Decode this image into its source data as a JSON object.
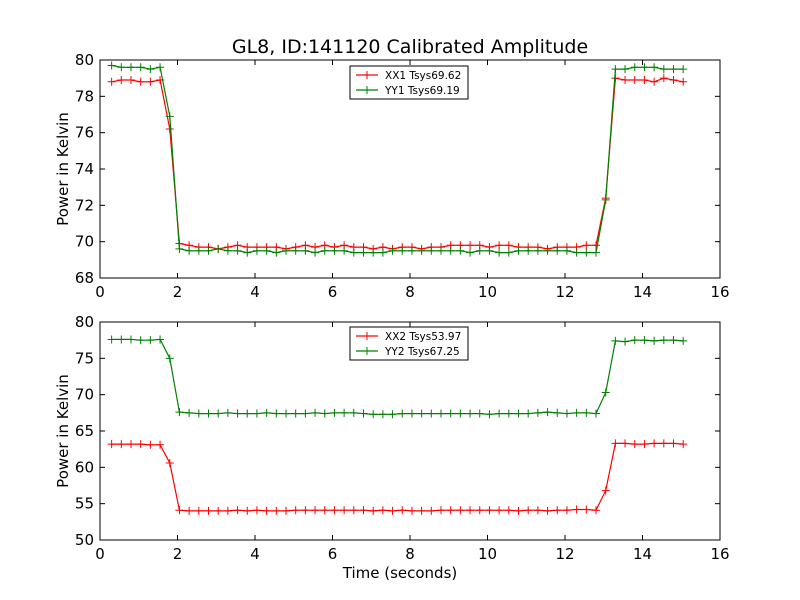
{
  "title": "GL8, ID:141120 Calibrated Amplitude",
  "chart_data": [
    {
      "type": "line",
      "ylabel": "Power in Kelvin",
      "xlabel": "",
      "xlim": [
        0,
        16
      ],
      "ylim": [
        68,
        80
      ],
      "xticks": [
        "0",
        "2",
        "4",
        "6",
        "8",
        "10",
        "12",
        "14",
        "16"
      ],
      "yticks": [
        "68",
        "70",
        "72",
        "74",
        "76",
        "78",
        "80"
      ],
      "legend_position": "upper-center",
      "series": [
        {
          "name": "XX1 Tsys69.62",
          "color": "#ff0000",
          "x": [
            0.3,
            0.55,
            0.8,
            1.05,
            1.3,
            1.55,
            1.8,
            2.05,
            2.3,
            2.55,
            2.8,
            3.05,
            3.3,
            3.55,
            3.8,
            4.05,
            4.3,
            4.55,
            4.8,
            5.05,
            5.3,
            5.55,
            5.8,
            6.05,
            6.3,
            6.55,
            6.8,
            7.05,
            7.3,
            7.55,
            7.8,
            8.05,
            8.3,
            8.55,
            8.8,
            9.05,
            9.3,
            9.55,
            9.8,
            10.05,
            10.3,
            10.55,
            10.8,
            11.05,
            11.3,
            11.55,
            11.8,
            12.05,
            12.3,
            12.55,
            12.8,
            13.05,
            13.3,
            13.55,
            13.8,
            14.05,
            14.3,
            14.55,
            14.8,
            15.05
          ],
          "y": [
            78.8,
            78.9,
            78.9,
            78.8,
            78.8,
            78.9,
            76.2,
            69.9,
            69.8,
            69.7,
            69.7,
            69.6,
            69.7,
            69.8,
            69.7,
            69.7,
            69.7,
            69.7,
            69.6,
            69.7,
            69.8,
            69.7,
            69.8,
            69.7,
            69.8,
            69.7,
            69.7,
            69.6,
            69.7,
            69.6,
            69.7,
            69.7,
            69.6,
            69.7,
            69.7,
            69.8,
            69.8,
            69.8,
            69.8,
            69.7,
            69.8,
            69.8,
            69.7,
            69.7,
            69.7,
            69.6,
            69.7,
            69.7,
            69.7,
            69.8,
            69.8,
            72.4,
            79.0,
            78.9,
            78.9,
            78.9,
            78.8,
            79.0,
            78.9,
            78.8
          ]
        },
        {
          "name": "YY1 Tsys69.19",
          "color": "#008000",
          "x": [
            0.3,
            0.55,
            0.8,
            1.05,
            1.3,
            1.55,
            1.8,
            2.05,
            2.3,
            2.55,
            2.8,
            3.05,
            3.3,
            3.55,
            3.8,
            4.05,
            4.3,
            4.55,
            4.8,
            5.05,
            5.3,
            5.55,
            5.8,
            6.05,
            6.3,
            6.55,
            6.8,
            7.05,
            7.3,
            7.55,
            7.8,
            8.05,
            8.3,
            8.55,
            8.8,
            9.05,
            9.3,
            9.55,
            9.8,
            10.05,
            10.3,
            10.55,
            10.8,
            11.05,
            11.3,
            11.55,
            11.8,
            12.05,
            12.3,
            12.55,
            12.8,
            13.05,
            13.3,
            13.55,
            13.8,
            14.05,
            14.3,
            14.55,
            14.8,
            15.05
          ],
          "y": [
            79.7,
            79.6,
            79.6,
            79.6,
            79.5,
            79.6,
            76.9,
            69.6,
            69.5,
            69.5,
            69.5,
            69.6,
            69.5,
            69.5,
            69.4,
            69.5,
            69.5,
            69.4,
            69.5,
            69.5,
            69.5,
            69.4,
            69.5,
            69.5,
            69.5,
            69.4,
            69.4,
            69.4,
            69.4,
            69.5,
            69.5,
            69.5,
            69.5,
            69.5,
            69.5,
            69.5,
            69.5,
            69.4,
            69.5,
            69.5,
            69.4,
            69.4,
            69.5,
            69.5,
            69.5,
            69.5,
            69.5,
            69.5,
            69.4,
            69.4,
            69.4,
            72.3,
            79.5,
            79.5,
            79.6,
            79.6,
            79.6,
            79.5,
            79.5,
            79.5
          ]
        }
      ]
    },
    {
      "type": "line",
      "ylabel": "Power in Kelvin",
      "xlabel": "Time (seconds)",
      "xlim": [
        0,
        16
      ],
      "ylim": [
        50,
        80
      ],
      "xticks": [
        "0",
        "2",
        "4",
        "6",
        "8",
        "10",
        "12",
        "14",
        "16"
      ],
      "yticks": [
        "50",
        "55",
        "60",
        "65",
        "70",
        "75",
        "80"
      ],
      "legend_position": "upper-center",
      "series": [
        {
          "name": "XX2 Tsys53.97",
          "color": "#ff0000",
          "x": [
            0.3,
            0.55,
            0.8,
            1.05,
            1.3,
            1.55,
            1.8,
            2.05,
            2.3,
            2.55,
            2.8,
            3.05,
            3.3,
            3.55,
            3.8,
            4.05,
            4.3,
            4.55,
            4.8,
            5.05,
            5.3,
            5.55,
            5.8,
            6.05,
            6.3,
            6.55,
            6.8,
            7.05,
            7.3,
            7.55,
            7.8,
            8.05,
            8.3,
            8.55,
            8.8,
            9.05,
            9.3,
            9.55,
            9.8,
            10.05,
            10.3,
            10.55,
            10.8,
            11.05,
            11.3,
            11.55,
            11.8,
            12.05,
            12.3,
            12.55,
            12.8,
            13.05,
            13.3,
            13.55,
            13.8,
            14.05,
            14.3,
            14.55,
            14.8,
            15.05
          ],
          "y": [
            63.2,
            63.2,
            63.2,
            63.2,
            63.1,
            63.1,
            60.6,
            54.1,
            54.0,
            54.0,
            54.0,
            54.0,
            54.0,
            54.1,
            54.0,
            54.1,
            54.0,
            54.0,
            54.0,
            54.1,
            54.1,
            54.1,
            54.1,
            54.1,
            54.1,
            54.1,
            54.1,
            54.0,
            54.1,
            54.0,
            54.1,
            54.0,
            54.0,
            54.0,
            54.1,
            54.1,
            54.1,
            54.1,
            54.1,
            54.1,
            54.1,
            54.1,
            54.0,
            54.1,
            54.1,
            54.0,
            54.1,
            54.1,
            54.2,
            54.2,
            54.1,
            56.8,
            63.3,
            63.3,
            63.2,
            63.2,
            63.3,
            63.3,
            63.3,
            63.2
          ]
        },
        {
          "name": "YY2 Tsys67.25",
          "color": "#008000",
          "x": [
            0.3,
            0.55,
            0.8,
            1.05,
            1.3,
            1.55,
            1.8,
            2.05,
            2.3,
            2.55,
            2.8,
            3.05,
            3.3,
            3.55,
            3.8,
            4.05,
            4.3,
            4.55,
            4.8,
            5.05,
            5.3,
            5.55,
            5.8,
            6.05,
            6.3,
            6.55,
            6.8,
            7.05,
            7.3,
            7.55,
            7.8,
            8.05,
            8.3,
            8.55,
            8.8,
            9.05,
            9.3,
            9.55,
            9.8,
            10.05,
            10.3,
            10.55,
            10.8,
            11.05,
            11.3,
            11.55,
            11.8,
            12.05,
            12.3,
            12.55,
            12.8,
            13.05,
            13.3,
            13.55,
            13.8,
            14.05,
            14.3,
            14.55,
            14.8,
            15.05
          ],
          "y": [
            77.6,
            77.6,
            77.6,
            77.5,
            77.5,
            77.6,
            75.0,
            67.6,
            67.5,
            67.4,
            67.4,
            67.4,
            67.5,
            67.4,
            67.4,
            67.4,
            67.5,
            67.4,
            67.4,
            67.4,
            67.4,
            67.5,
            67.4,
            67.5,
            67.5,
            67.5,
            67.4,
            67.3,
            67.3,
            67.3,
            67.4,
            67.4,
            67.4,
            67.4,
            67.4,
            67.4,
            67.4,
            67.4,
            67.4,
            67.3,
            67.4,
            67.4,
            67.4,
            67.4,
            67.5,
            67.6,
            67.5,
            67.4,
            67.5,
            67.5,
            67.4,
            70.3,
            77.4,
            77.3,
            77.5,
            77.5,
            77.4,
            77.5,
            77.5,
            77.4
          ]
        }
      ]
    }
  ]
}
